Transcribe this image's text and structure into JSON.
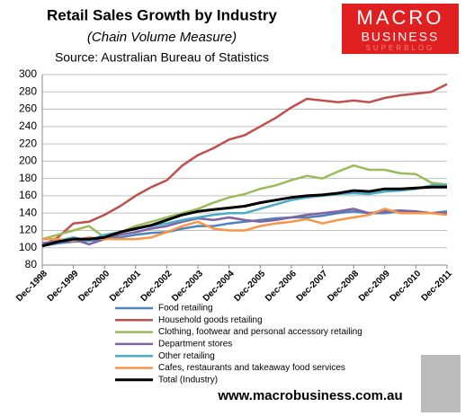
{
  "chart_data": {
    "type": "line",
    "title": "Retail Sales Growth by Industry",
    "subtitle": "(Chain Volume Measure)",
    "source": "Source: Australian Bureau of Statistics",
    "categories": [
      "Dec-1998",
      null,
      "Dec-1999",
      null,
      "Dec-2000",
      null,
      "Dec-2001",
      null,
      "Dec-2002",
      null,
      "Dec-2003",
      null,
      "Dec-2004",
      null,
      "Dec-2005",
      null,
      "Dec-2006",
      null,
      "Dec-2007",
      null,
      "Dec-2008",
      null,
      "Dec-2009",
      null,
      "Dec-2010",
      null,
      "Dec-2011"
    ],
    "series": [
      {
        "name": "Food retailing",
        "color": "#4f81bd",
        "values": [
          102,
          105,
          107,
          108,
          110,
          112,
          115,
          117,
          118,
          122,
          125,
          125,
          128,
          130,
          132,
          134,
          135,
          135,
          137,
          140,
          142,
          140,
          140,
          142,
          141,
          140,
          142
        ]
      },
      {
        "name": "Household goods retailing",
        "color": "#c0504d",
        "values": [
          102,
          112,
          128,
          130,
          138,
          148,
          160,
          170,
          178,
          195,
          207,
          215,
          225,
          230,
          240,
          250,
          262,
          272,
          270,
          268,
          270,
          268,
          273,
          276,
          278,
          280,
          289
        ]
      },
      {
        "name": "Clothing, footwear and personal accessory retailing",
        "color": "#9bbb59",
        "values": [
          110,
          115,
          120,
          125,
          112,
          118,
          125,
          130,
          135,
          140,
          145,
          152,
          158,
          162,
          168,
          172,
          178,
          183,
          180,
          188,
          195,
          190,
          190,
          186,
          185,
          175,
          173
        ]
      },
      {
        "name": "Department stores",
        "color": "#8064a2",
        "values": [
          105,
          108,
          110,
          104,
          110,
          115,
          118,
          122,
          125,
          130,
          134,
          132,
          135,
          132,
          130,
          132,
          135,
          138,
          140,
          142,
          145,
          140,
          142,
          143,
          142,
          140,
          140
        ]
      },
      {
        "name": "Other retailing",
        "color": "#4bacc6",
        "values": [
          102,
          108,
          112,
          108,
          115,
          118,
          122,
          125,
          128,
          132,
          135,
          138,
          140,
          140,
          145,
          150,
          155,
          158,
          160,
          162,
          163,
          162,
          165,
          166,
          168,
          172,
          172
        ]
      },
      {
        "name": "Cafes, restaurants and takeaway food services",
        "color": "#f79646",
        "values": [
          110,
          110,
          108,
          112,
          110,
          110,
          110,
          112,
          118,
          125,
          130,
          122,
          120,
          120,
          125,
          128,
          130,
          133,
          128,
          132,
          135,
          138,
          145,
          140,
          140,
          140,
          138
        ]
      },
      {
        "name": "Total (Industry)",
        "color": "#000000",
        "values": [
          102,
          107,
          110,
          110,
          112,
          118,
          122,
          126,
          132,
          138,
          142,
          144,
          146,
          148,
          152,
          155,
          158,
          160,
          161,
          163,
          166,
          165,
          168,
          168,
          169,
          170,
          170
        ]
      }
    ],
    "ylim": [
      80,
      300
    ],
    "yticks": [
      80,
      100,
      120,
      140,
      160,
      180,
      200,
      220,
      240,
      260,
      280,
      300
    ],
    "grid": true
  },
  "logo": {
    "line1": "MACRO",
    "line2": "BUSINESS",
    "line3": "SUPERBLOG"
  },
  "footer": "www.macrobusiness.com.au"
}
